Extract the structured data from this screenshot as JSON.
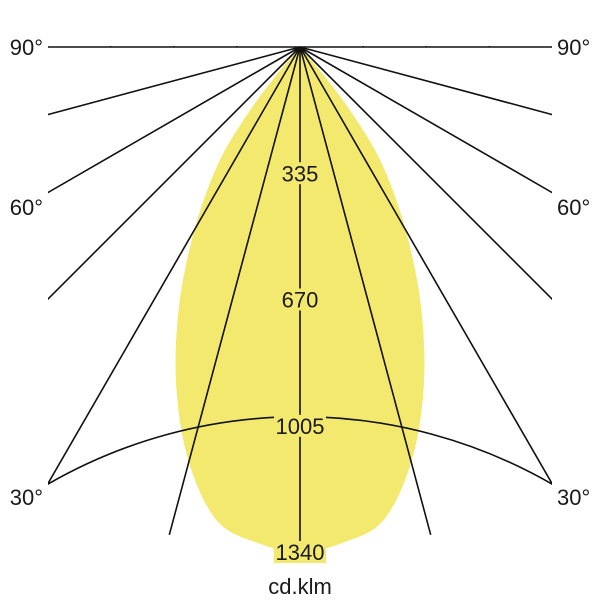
{
  "chart_data": {
    "type": "polar",
    "unit_label": "cd.klm",
    "angle_labels": [
      {
        "angle": 90,
        "text": "90°"
      },
      {
        "angle": 60,
        "text": "60°"
      },
      {
        "angle": 30,
        "text": "30°"
      }
    ],
    "radial_max": 1340,
    "radial_grid_step": 167.5,
    "radial_tick_labels": [
      {
        "value": 335,
        "text": "335"
      },
      {
        "value": 670,
        "text": "670"
      },
      {
        "value": 1005,
        "text": "1005"
      },
      {
        "value": 1340,
        "text": "1340"
      }
    ],
    "angle_grid_step_deg": 15,
    "angular_range_deg": [
      -90,
      90
    ],
    "grid": true,
    "fill_color": "#f3e96f",
    "series": [
      {
        "angles_deg": [
          0,
          5,
          10,
          15,
          20,
          25,
          30,
          35,
          38,
          40,
          42
        ],
        "intensity": [
          1340,
          1320,
          1275,
          1140,
          960,
          760,
          560,
          380,
          230,
          100,
          0
        ]
      }
    ]
  }
}
